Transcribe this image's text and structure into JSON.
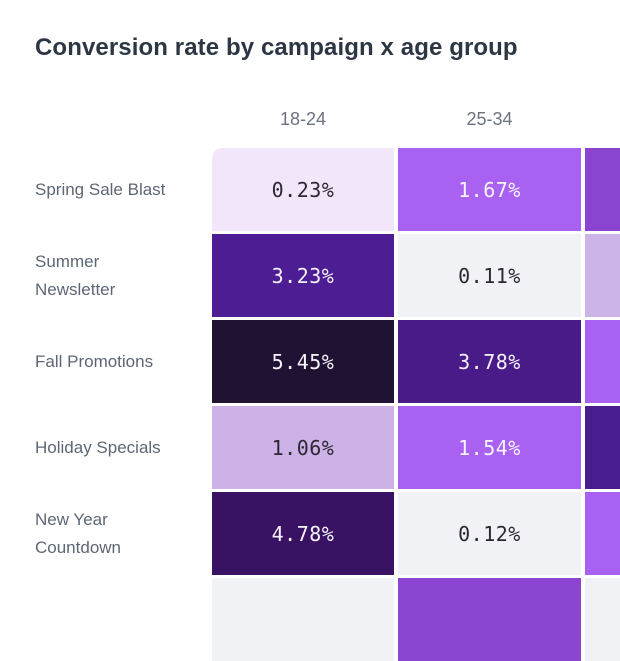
{
  "title": "Conversion rate by campaign x age group",
  "chart_data": {
    "type": "heatmap",
    "title": "Conversion rate by campaign x age group",
    "x_axis": "age group",
    "y_axis": "campaign",
    "x_categories_visible": [
      "18-24",
      "25-34"
    ],
    "y_categories_visible": [
      "Spring Sale Blast",
      "Summer Newsletter",
      "Fall Promotions",
      "Holiday Specials",
      "New Year Countdown"
    ],
    "values_pct": [
      [
        0.23,
        1.67
      ],
      [
        3.23,
        0.11
      ],
      [
        5.45,
        3.78
      ],
      [
        1.06,
        1.54
      ],
      [
        4.78,
        0.12
      ]
    ],
    "value_format": "percent, 2 decimals",
    "color_scale": {
      "low": "#f1f2f6",
      "mid": "#a95ef5",
      "high": "#1f1233"
    },
    "layout": {
      "legend": "none",
      "grid_gap_color": "#ffffff",
      "partial_third_column_visible": true,
      "partial_sixth_row_visible": true
    }
  },
  "render": {
    "rows": [
      {
        "label_lines": [
          "Spring Sale Blast"
        ],
        "cells": [
          {
            "value": "0.23%",
            "bg": "#f2e7fa",
            "tone": "dark"
          },
          {
            "value": "1.67%",
            "bg": "#a961f2",
            "tone": "light"
          },
          {
            "value": "",
            "bg": "#8b44d0",
            "tone": "light"
          }
        ]
      },
      {
        "label_lines": [
          "Summer",
          "Newsletter"
        ],
        "cells": [
          {
            "value": "3.23%",
            "bg": "#4c1d93",
            "tone": "light"
          },
          {
            "value": "0.11%",
            "bg": "#f1f2f6",
            "tone": "dark"
          },
          {
            "value": "",
            "bg": "#cdb4e8",
            "tone": "dark"
          }
        ]
      },
      {
        "label_lines": [
          "Fall Promotions"
        ],
        "cells": [
          {
            "value": "5.45%",
            "bg": "#1f1233",
            "tone": "light"
          },
          {
            "value": "3.78%",
            "bg": "#481b89",
            "tone": "light"
          },
          {
            "value": "",
            "bg": "#a961f2",
            "tone": "light"
          }
        ]
      },
      {
        "label_lines": [
          "Holiday Specials"
        ],
        "cells": [
          {
            "value": "1.06%",
            "bg": "#ccb2e6",
            "tone": "dark"
          },
          {
            "value": "1.54%",
            "bg": "#a961f2",
            "tone": "light"
          },
          {
            "value": "",
            "bg": "#4a1d8f",
            "tone": "light"
          }
        ]
      },
      {
        "label_lines": [
          "New Year",
          "Countdown"
        ],
        "cells": [
          {
            "value": "4.78%",
            "bg": "#3a1263",
            "tone": "light"
          },
          {
            "value": "0.12%",
            "bg": "#f1f2f6",
            "tone": "dark"
          },
          {
            "value": "",
            "bg": "#a961f2",
            "tone": "light"
          }
        ]
      },
      {
        "label_lines": [],
        "cells": [
          {
            "value": "",
            "bg": "#f1f2f6",
            "tone": "dark"
          },
          {
            "value": "",
            "bg": "#8b45d1",
            "tone": "light"
          },
          {
            "value": "",
            "bg": "#f1f2f6",
            "tone": "dark"
          }
        ]
      }
    ]
  },
  "colors": {
    "background": "#ffffff",
    "title_text": "#2d3643",
    "header_text": "#6b7280",
    "label_text": "#5d6674",
    "value_text_dark": "#2c2733",
    "value_text_light": "#f7f4fb"
  }
}
